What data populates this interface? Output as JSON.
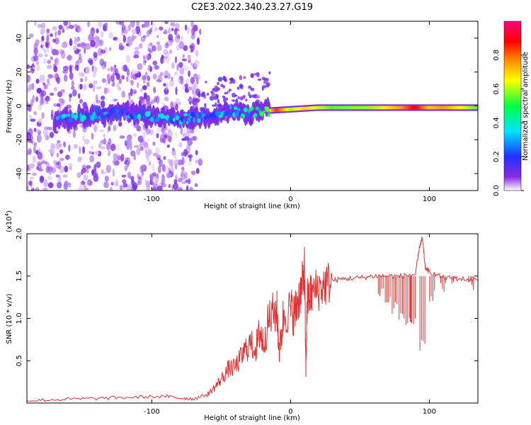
{
  "title": "C2E3.2022.340.23.27.G19",
  "colors": {
    "snr_line": "#e83030",
    "spectrum_core": "#5a00e0",
    "colormap": [
      "#ffffff",
      "#8a2be2",
      "#2030ff",
      "#00e5ff",
      "#00ff40",
      "#ffff00",
      "#ff8000",
      "#ff0000",
      "#ff0080"
    ]
  },
  "chart_data": [
    {
      "type": "heatmap",
      "xlabel": "Height of straight line (km)",
      "ylabel": "Frequency (Hz)",
      "xlim": [
        -190,
        135
      ],
      "ylim": [
        -50,
        50
      ],
      "x_ticks": [
        "-100",
        "0",
        "100"
      ],
      "y_ticks": [
        "-40",
        "-20",
        "0",
        "20",
        "40"
      ],
      "colorbar": {
        "label": "Normalized spectral amplitude",
        "range": [
          0,
          1
        ],
        "ticks": [
          "0.0",
          "0.2",
          "0.4",
          "0.6",
          "0.8"
        ]
      },
      "signal_track": [
        {
          "x": -165,
          "freq": -8
        },
        {
          "x": -140,
          "freq": -5
        },
        {
          "x": -120,
          "freq": -4
        },
        {
          "x": -100,
          "freq": -6
        },
        {
          "x": -80,
          "freq": -8
        },
        {
          "x": -60,
          "freq": -6
        },
        {
          "x": -45,
          "freq": -3
        },
        {
          "x": -30,
          "freq": -4
        },
        {
          "x": -20,
          "freq": -3
        },
        {
          "x": 0,
          "freq": -2
        },
        {
          "x": 20,
          "freq": -1
        },
        {
          "x": 60,
          "freq": -1
        },
        {
          "x": 90,
          "freq": -1
        },
        {
          "x": 120,
          "freq": -1
        },
        {
          "x": 135,
          "freq": -1
        }
      ],
      "peak_amplitude": [
        {
          "x": -165,
          "value": 0.35
        },
        {
          "x": -150,
          "value": 0.35
        },
        {
          "x": -130,
          "value": 0.3
        },
        {
          "x": -110,
          "value": 0.35
        },
        {
          "x": -90,
          "value": 0.35
        },
        {
          "x": -60,
          "value": 0.3
        },
        {
          "x": -40,
          "value": 0.4
        },
        {
          "x": -20,
          "value": 0.5
        },
        {
          "x": -10,
          "value": 0.85
        },
        {
          "x": 0,
          "value": 0.6
        },
        {
          "x": 10,
          "value": 0.7
        },
        {
          "x": 30,
          "value": 0.55
        },
        {
          "x": 60,
          "value": 0.6
        },
        {
          "x": 80,
          "value": 0.75
        },
        {
          "x": 90,
          "value": 0.9
        },
        {
          "x": 100,
          "value": 0.7
        },
        {
          "x": 110,
          "value": 0.75
        },
        {
          "x": 135,
          "value": 0.55
        }
      ]
    },
    {
      "type": "line",
      "xlabel": "Height of straight line (km)",
      "ylabel": "SNR (10 * v/v)",
      "y_multiplier": "(x10",
      "y_multiplier_exp": "4",
      "y_multiplier_close": ")",
      "xlim": [
        -190,
        135
      ],
      "ylim": [
        0,
        2.0
      ],
      "x_ticks": [
        "-100",
        "0",
        "100"
      ],
      "y_ticks": [
        "0.5",
        "1.0",
        "1.5",
        "2.0"
      ],
      "series": [
        {
          "x": [
            -190,
            -170,
            -150,
            -130,
            -110,
            -90,
            -80,
            -70,
            -60,
            -55,
            -50,
            -45,
            -40,
            -35,
            -30,
            -25,
            -22,
            -20,
            -15,
            -10,
            -8,
            -5,
            0,
            3,
            5,
            8,
            10,
            11,
            12,
            15,
            20,
            25,
            30,
            40,
            50,
            60,
            70,
            80,
            90,
            93,
            95,
            97,
            100,
            110,
            120,
            135
          ],
          "y": [
            0.03,
            0.04,
            0.05,
            0.06,
            0.07,
            0.08,
            0.06,
            0.05,
            0.1,
            0.18,
            0.28,
            0.4,
            0.42,
            0.55,
            0.7,
            0.65,
            0.85,
            0.72,
            1.0,
            1.1,
            0.6,
            1.05,
            1.1,
            1.05,
            1.2,
            1.35,
            1.6,
            0.4,
            1.2,
            1.3,
            1.35,
            1.4,
            1.45,
            1.47,
            1.48,
            1.5,
            1.5,
            1.5,
            1.52,
            1.85,
            1.95,
            1.6,
            1.55,
            1.48,
            1.47,
            1.45
          ]
        }
      ],
      "dip_markers": [
        {
          "x": 65,
          "min": 1.25
        },
        {
          "x": 70,
          "min": 1.15
        },
        {
          "x": 75,
          "min": 1.05
        },
        {
          "x": 80,
          "min": 0.95
        },
        {
          "x": 85,
          "min": 0.88
        },
        {
          "x": 88,
          "min": 0.85
        },
        {
          "x": 95,
          "min": 0.62
        },
        {
          "x": 102,
          "min": 1.2
        },
        {
          "x": 110,
          "min": 1.3
        },
        {
          "x": 118,
          "min": 1.35
        },
        {
          "x": 130,
          "min": 1.33
        }
      ]
    }
  ]
}
